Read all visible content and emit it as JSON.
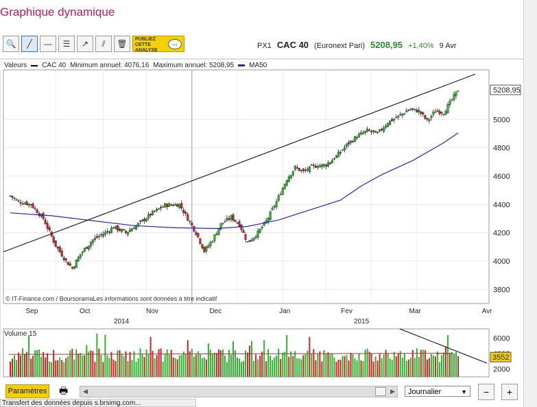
{
  "page": {
    "title": "Graphique dynamique"
  },
  "toolbar": {
    "tools": [
      {
        "name": "zoom-tool-icon",
        "glyph": "🔍"
      },
      {
        "name": "trendline-tool-icon",
        "glyph": "╱"
      },
      {
        "name": "horizontal-line-tool-icon",
        "glyph": "—"
      },
      {
        "name": "fibonacci-tool-icon",
        "glyph": "☰"
      },
      {
        "name": "channel-tool-icon",
        "glyph": "↗"
      },
      {
        "name": "parallel-lines-tool-icon",
        "glyph": "⫽"
      },
      {
        "name": "trash-icon",
        "glyph": "🗑"
      }
    ],
    "promo_lines": [
      "PUBLIEZ",
      "CETTE",
      "ANALYSE"
    ]
  },
  "quote": {
    "ticker": "PX1",
    "name": "CAC 40",
    "market": "(Euronext Pari)",
    "last": "5208,95",
    "change": "+1,40%",
    "date": "9 Avr"
  },
  "legend": {
    "values_label": "Valeurs",
    "series1": "CAC 40",
    "min_label": "Minimum annuel: 4076,16",
    "max_label": "Maximum annuel: 5208,95",
    "series2": "MA50",
    "series1_color": "#000000",
    "series2_color": "#2323c8"
  },
  "copyright": "© IT-Finance.com / BoursoramaLes informations sont données à titre indicatif",
  "volume_label": "Volume 15",
  "bottom": {
    "params_label": "Paramètres",
    "interval_value": "Journalier",
    "zoom_out": "−",
    "zoom_in": "+"
  },
  "status": "Transfert des données depuis s.brsimg.com...",
  "colors": {
    "up": "#2bb52b",
    "down": "#cc2222",
    "ma": "#2323c8",
    "trend": "#000000",
    "title": "#c2185b"
  },
  "chart_data": [
    {
      "type": "candlestick",
      "title": "CAC 40",
      "series_name": "CAC 40",
      "ma_name": "MA50",
      "ylim": [
        3700,
        5350
      ],
      "y_ticks": [
        3800,
        4000,
        4200,
        4400,
        4600,
        4800,
        5000,
        5208.95
      ],
      "y_tick_labels": [
        "3800",
        "4000",
        "4200",
        "4400",
        "4600",
        "4800",
        "5000",
        "5208,95"
      ],
      "month_labels": [
        "Sep",
        "Oct",
        "Nov",
        "Dec",
        "Jan",
        "Fev",
        "Mar",
        "Avr"
      ],
      "year_labels": [
        "2014",
        "2015"
      ],
      "close_points": [
        {
          "i": 0,
          "v": 4460
        },
        {
          "i": 4,
          "v": 4420
        },
        {
          "i": 10,
          "v": 4400
        },
        {
          "i": 16,
          "v": 4300
        },
        {
          "i": 22,
          "v": 4110
        },
        {
          "i": 27,
          "v": 4000
        },
        {
          "i": 30,
          "v": 3950
        },
        {
          "i": 34,
          "v": 4050
        },
        {
          "i": 40,
          "v": 4150
        },
        {
          "i": 46,
          "v": 4200
        },
        {
          "i": 50,
          "v": 4240
        },
        {
          "i": 56,
          "v": 4200
        },
        {
          "i": 62,
          "v": 4260
        },
        {
          "i": 68,
          "v": 4330
        },
        {
          "i": 75,
          "v": 4395
        },
        {
          "i": 82,
          "v": 4400
        },
        {
          "i": 86,
          "v": 4300
        },
        {
          "i": 90,
          "v": 4200
        },
        {
          "i": 94,
          "v": 4070
        },
        {
          "i": 98,
          "v": 4150
        },
        {
          "i": 102,
          "v": 4260
        },
        {
          "i": 107,
          "v": 4310
        },
        {
          "i": 111,
          "v": 4260
        },
        {
          "i": 115,
          "v": 4130
        },
        {
          "i": 120,
          "v": 4200
        },
        {
          "i": 124,
          "v": 4280
        },
        {
          "i": 129,
          "v": 4420
        },
        {
          "i": 134,
          "v": 4580
        },
        {
          "i": 138,
          "v": 4660
        },
        {
          "i": 142,
          "v": 4630
        },
        {
          "i": 147,
          "v": 4670
        },
        {
          "i": 153,
          "v": 4680
        },
        {
          "i": 158,
          "v": 4740
        },
        {
          "i": 163,
          "v": 4820
        },
        {
          "i": 168,
          "v": 4880
        },
        {
          "i": 173,
          "v": 4920
        },
        {
          "i": 178,
          "v": 4900
        },
        {
          "i": 183,
          "v": 4980
        },
        {
          "i": 188,
          "v": 5020
        },
        {
          "i": 193,
          "v": 5070
        },
        {
          "i": 198,
          "v": 5060
        },
        {
          "i": 202,
          "v": 4990
        },
        {
          "i": 206,
          "v": 5060
        },
        {
          "i": 210,
          "v": 5050
        },
        {
          "i": 214,
          "v": 5140
        },
        {
          "i": 217,
          "v": 5208.95
        }
      ],
      "ma50": [
        {
          "i": 0,
          "v": 4340
        },
        {
          "i": 20,
          "v": 4320
        },
        {
          "i": 40,
          "v": 4285
        },
        {
          "i": 60,
          "v": 4250
        },
        {
          "i": 80,
          "v": 4235
        },
        {
          "i": 100,
          "v": 4230
        },
        {
          "i": 115,
          "v": 4245
        },
        {
          "i": 130,
          "v": 4290
        },
        {
          "i": 145,
          "v": 4360
        },
        {
          "i": 160,
          "v": 4430
        },
        {
          "i": 170,
          "v": 4530
        },
        {
          "i": 180,
          "v": 4610
        },
        {
          "i": 195,
          "v": 4710
        },
        {
          "i": 210,
          "v": 4835
        },
        {
          "i": 217,
          "v": 4905
        }
      ],
      "trendline": [
        {
          "i": 0,
          "v": 4065
        },
        {
          "i": 230,
          "v": 5320
        }
      ],
      "n_sessions": 218
    },
    {
      "type": "bar",
      "title": "Volume 15",
      "ylim": [
        1000,
        7200
      ],
      "y_ticks": [
        2000,
        4000,
        6000
      ],
      "last_value_label": "3552",
      "base_level": 3700,
      "average_line_level": 3900
    }
  ]
}
